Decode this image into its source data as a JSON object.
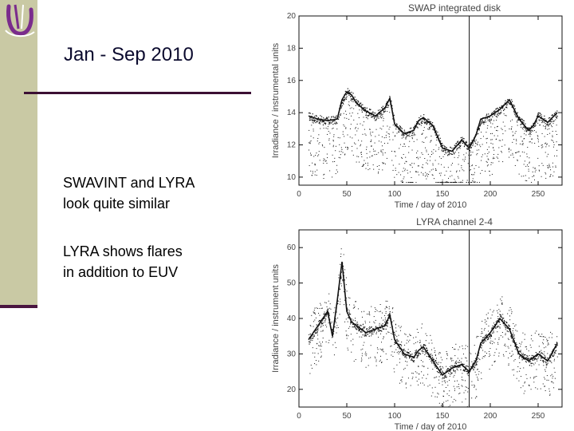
{
  "slide": {
    "title": "Jan - Sep 2010",
    "bullets": [
      {
        "line1": "SWAVINT and LYRA",
        "line2": "look quite similar"
      },
      {
        "line1": "LYRA shows flares",
        "line2": "in addition to EUV"
      }
    ]
  },
  "colors": {
    "sidebar": "#c9c9a4",
    "accent": "#4a1640",
    "logo": "#7a2c8c",
    "plot_ink": "#111111"
  },
  "chart_data": [
    {
      "type": "scatter",
      "title": "SWAP integrated disk",
      "xlabel": "Time / day of 2010",
      "ylabel": "Irradiance / instrumental units",
      "xlim": [
        0,
        275
      ],
      "ylim": [
        9.5,
        20
      ],
      "xticks": [
        0,
        50,
        100,
        150,
        200,
        250
      ],
      "yticks": [
        10,
        12,
        14,
        16,
        18,
        20
      ],
      "vline_x": 178,
      "x": [
        10,
        20,
        30,
        40,
        45,
        50,
        55,
        60,
        70,
        80,
        90,
        95,
        100,
        110,
        120,
        125,
        130,
        140,
        150,
        160,
        170,
        178,
        185,
        190,
        200,
        210,
        220,
        230,
        240,
        245,
        250,
        260,
        270
      ],
      "values": [
        13.8,
        13.6,
        13.5,
        13.6,
        14.8,
        15.3,
        15.1,
        14.6,
        14.1,
        13.8,
        14.3,
        14.9,
        13.3,
        12.7,
        12.9,
        13.5,
        13.7,
        13.2,
        11.8,
        11.6,
        12.3,
        11.8,
        12.6,
        13.6,
        13.8,
        14.2,
        14.8,
        13.6,
        12.9,
        13.2,
        13.8,
        13.4,
        14.0
      ]
    },
    {
      "type": "scatter",
      "title": "LYRA channel 2-4",
      "xlabel": "Time / day of 2010",
      "ylabel": "Irradiance / instrument units",
      "xlim": [
        0,
        275
      ],
      "ylim": [
        15,
        65
      ],
      "xticks": [
        0,
        50,
        100,
        150,
        200,
        250
      ],
      "yticks": [
        20,
        30,
        40,
        50,
        60
      ],
      "vline_x": 178,
      "x": [
        10,
        20,
        25,
        30,
        35,
        40,
        45,
        50,
        55,
        60,
        70,
        80,
        90,
        95,
        100,
        110,
        120,
        125,
        130,
        140,
        150,
        160,
        170,
        178,
        185,
        190,
        200,
        210,
        220,
        230,
        240,
        245,
        250,
        260,
        270
      ],
      "values": [
        34,
        38,
        40,
        42,
        35,
        45,
        56,
        42,
        39,
        38,
        36,
        37,
        38,
        41,
        34,
        30,
        29,
        31,
        32,
        28,
        24,
        26,
        27,
        25,
        28,
        33,
        36,
        40,
        37,
        30,
        28,
        29,
        30,
        28,
        33
      ]
    }
  ]
}
